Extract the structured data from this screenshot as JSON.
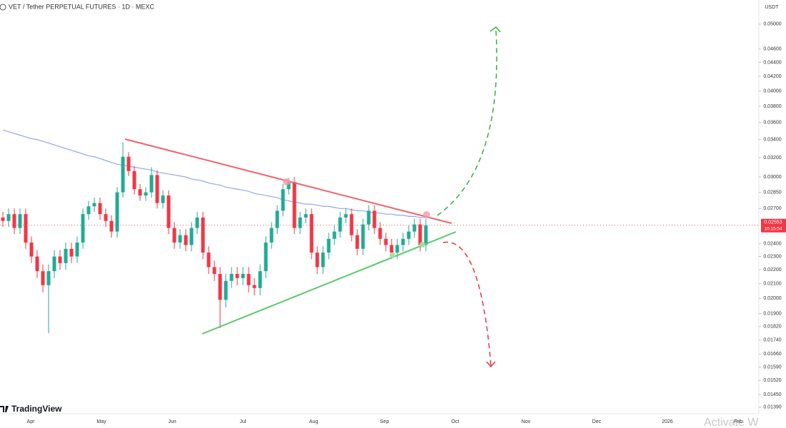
{
  "header": {
    "symbol_title": "VET / Tether PERPETUAL FUTURES · 1D · MEXC",
    "currency": "USDT",
    "brand": "TradingView",
    "watermark": "Activate W"
  },
  "chart_data": {
    "type": "candlestick",
    "log_scale": true,
    "grid": false,
    "up_color": "#22ab94",
    "down_color": "#f23645",
    "open": [
      0.0262,
      0.0259,
      0.0265,
      0.0253,
      0.0265,
      0.0241,
      0.023,
      0.0219,
      0.0209,
      0.0219,
      0.023,
      0.0225,
      0.0236,
      0.023,
      0.0241,
      0.0265,
      0.0272,
      0.0275,
      0.0265,
      0.0259,
      0.025,
      0.0285,
      0.0321,
      0.0306,
      0.0288,
      0.0282,
      0.0285,
      0.0302,
      0.0275,
      0.0282,
      0.0253,
      0.0241,
      0.0247,
      0.0239,
      0.0253,
      0.0262,
      0.0233,
      0.0222,
      0.0217,
      0.0199,
      0.0212,
      0.0217,
      0.0214,
      0.0217,
      0.0209,
      0.0207,
      0.0219,
      0.0241,
      0.0253,
      0.0268,
      0.0288,
      0.0295,
      0.0253,
      0.0262,
      0.0265,
      0.0233,
      0.0222,
      0.0233,
      0.0244,
      0.025,
      0.0262,
      0.0265,
      0.0247,
      0.0236,
      0.0256,
      0.0268,
      0.0253,
      0.0244,
      0.0239,
      0.0233,
      0.0239,
      0.0244,
      0.025,
      0.0256,
      0.0239
    ],
    "high": [
      0.0267,
      0.027,
      0.027,
      0.027,
      0.027,
      0.0246,
      0.0235,
      0.0224,
      0.0224,
      0.0235,
      0.0235,
      0.0241,
      0.0241,
      0.0246,
      0.027,
      0.0277,
      0.028,
      0.028,
      0.027,
      0.0264,
      0.029,
      0.0337,
      0.0326,
      0.0311,
      0.0293,
      0.029,
      0.031,
      0.0307,
      0.0287,
      0.0287,
      0.0258,
      0.0252,
      0.0252,
      0.0258,
      0.0267,
      0.0267,
      0.0238,
      0.0227,
      0.0222,
      0.0217,
      0.0222,
      0.0222,
      0.0222,
      0.0222,
      0.0214,
      0.0224,
      0.0246,
      0.0258,
      0.0273,
      0.0293,
      0.0299,
      0.03,
      0.0267,
      0.027,
      0.027,
      0.0238,
      0.0238,
      0.0249,
      0.0255,
      0.0267,
      0.027,
      0.027,
      0.0252,
      0.0261,
      0.0273,
      0.0273,
      0.0258,
      0.0249,
      0.0244,
      0.0244,
      0.0249,
      0.0255,
      0.0261,
      0.0261,
      0.0261
    ],
    "low": [
      0.0254,
      0.0254,
      0.0248,
      0.0248,
      0.0236,
      0.0225,
      0.0214,
      0.0204,
      0.0178,
      0.0214,
      0.022,
      0.022,
      0.0225,
      0.0225,
      0.0236,
      0.026,
      0.0267,
      0.026,
      0.0254,
      0.0245,
      0.0245,
      0.028,
      0.0301,
      0.0283,
      0.0277,
      0.0277,
      0.028,
      0.027,
      0.027,
      0.0248,
      0.0236,
      0.0236,
      0.0234,
      0.0234,
      0.0248,
      0.0228,
      0.0217,
      0.0212,
      0.0181,
      0.0194,
      0.0207,
      0.0209,
      0.0209,
      0.0204,
      0.0202,
      0.0202,
      0.0214,
      0.0236,
      0.0248,
      0.0263,
      0.0283,
      0.0248,
      0.0248,
      0.0257,
      0.0228,
      0.0217,
      0.0217,
      0.0228,
      0.0239,
      0.0245,
      0.0257,
      0.0242,
      0.0231,
      0.0231,
      0.0251,
      0.0248,
      0.0239,
      0.0234,
      0.0228,
      0.0228,
      0.0234,
      0.0239,
      0.0245,
      0.0234,
      0.0234
    ],
    "close": [
      0.0259,
      0.0265,
      0.0253,
      0.0265,
      0.0241,
      0.023,
      0.0219,
      0.0209,
      0.0219,
      0.023,
      0.0225,
      0.0236,
      0.023,
      0.0241,
      0.0265,
      0.0272,
      0.0275,
      0.0265,
      0.0259,
      0.025,
      0.0285,
      0.0321,
      0.0306,
      0.0288,
      0.0282,
      0.0285,
      0.0302,
      0.0275,
      0.0282,
      0.0253,
      0.0241,
      0.0247,
      0.0239,
      0.0253,
      0.0262,
      0.0233,
      0.0222,
      0.0217,
      0.0199,
      0.0212,
      0.0217,
      0.0214,
      0.0217,
      0.0209,
      0.0207,
      0.0219,
      0.0241,
      0.0253,
      0.0268,
      0.0288,
      0.0295,
      0.0253,
      0.0262,
      0.0265,
      0.0233,
      0.0222,
      0.0233,
      0.0244,
      0.025,
      0.0262,
      0.0265,
      0.0247,
      0.0236,
      0.0256,
      0.0268,
      0.0253,
      0.0244,
      0.0239,
      0.0233,
      0.0239,
      0.0244,
      0.025,
      0.0256,
      0.0239,
      0.02553
    ],
    "moving_average": {
      "color": "#90a8ee",
      "values": [
        0.0351,
        0.0349,
        0.0347,
        0.0345,
        0.0343,
        0.0341,
        0.034,
        0.0338,
        0.0336,
        0.0334,
        0.0332,
        0.033,
        0.0328,
        0.0326,
        0.0324,
        0.0322,
        0.0321,
        0.0319,
        0.0317,
        0.0315,
        0.0313,
        0.0312,
        0.0311,
        0.031,
        0.0309,
        0.0308,
        0.0307,
        0.0305,
        0.0304,
        0.0303,
        0.0302,
        0.0301,
        0.03,
        0.0298,
        0.0297,
        0.0296,
        0.0294,
        0.0293,
        0.0292,
        0.029,
        0.0289,
        0.0288,
        0.0287,
        0.0286,
        0.0284,
        0.0283,
        0.0282,
        0.0281,
        0.028,
        0.0278,
        0.0277,
        0.0276,
        0.0275,
        0.0274,
        0.0274,
        0.0273,
        0.0272,
        0.0272,
        0.0271,
        0.027,
        0.027,
        0.0269,
        0.0268,
        0.0268,
        0.0267,
        0.0266,
        0.0266,
        0.0265,
        0.0265,
        0.0264,
        0.0264,
        0.0263,
        0.0263,
        0.0262,
        0.0262
      ]
    },
    "price_countdown": "10:15:54",
    "x_labels": [
      "Apr",
      "May",
      "Jun",
      "Jul",
      "Aug",
      "Sep",
      "Oct",
      "Nov",
      "Dec",
      "2026",
      "Feb"
    ],
    "ylim": [
      0.0136,
      0.0542
    ],
    "yticks": [
      {
        "value": 0.05,
        "label": "0.05000"
      },
      {
        "value": 0.046,
        "label": "0.04600"
      },
      {
        "value": 0.044,
        "label": "0.04400"
      },
      {
        "value": 0.042,
        "label": "0.04200"
      },
      {
        "value": 0.04,
        "label": "0.04000"
      },
      {
        "value": 0.038,
        "label": "0.03800"
      },
      {
        "value": 0.036,
        "label": "0.03600"
      },
      {
        "value": 0.034,
        "label": "0.03400"
      },
      {
        "value": 0.032,
        "label": "0.03200"
      },
      {
        "value": 0.03,
        "label": "0.03000"
      },
      {
        "value": 0.0285,
        "label": "0.02850"
      },
      {
        "value": 0.027,
        "label": "0.02700"
      },
      {
        "value": 0.024,
        "label": "0.02400"
      },
      {
        "value": 0.023,
        "label": "0.02300"
      },
      {
        "value": 0.022,
        "label": "0.02200"
      },
      {
        "value": 0.021,
        "label": "0.02100"
      },
      {
        "value": 0.02,
        "label": "0.02000"
      },
      {
        "value": 0.019,
        "label": "0.01900"
      },
      {
        "value": 0.0182,
        "label": "0.01820"
      },
      {
        "value": 0.0174,
        "label": "0.01740"
      },
      {
        "value": 0.0166,
        "label": "0.01660"
      },
      {
        "value": 0.0159,
        "label": "0.01590"
      },
      {
        "value": 0.0152,
        "label": "0.01520"
      },
      {
        "value": 0.0145,
        "label": "0.01450"
      },
      {
        "value": 0.0139,
        "label": "0.01390"
      }
    ]
  }
}
